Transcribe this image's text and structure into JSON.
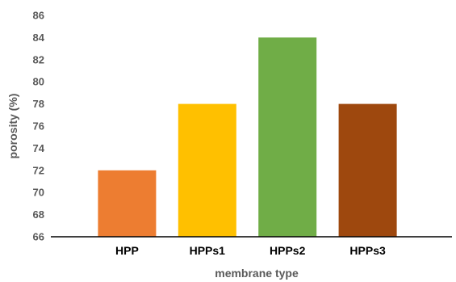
{
  "chart_data": {
    "type": "bar",
    "title": "",
    "xlabel": "membrane type",
    "ylabel": "porosity (%)",
    "categories": [
      "HPP",
      "HPPs1",
      "HPPs2",
      "HPPs3"
    ],
    "values": [
      72,
      78,
      84,
      78
    ],
    "colors": [
      "#ED7D31",
      "#FFC000",
      "#70AD47",
      "#9E480E"
    ],
    "ylim": [
      66,
      86
    ],
    "yticks": [
      66,
      68,
      70,
      72,
      74,
      76,
      78,
      80,
      82,
      84,
      86
    ],
    "grid": false,
    "legend": "none"
  }
}
